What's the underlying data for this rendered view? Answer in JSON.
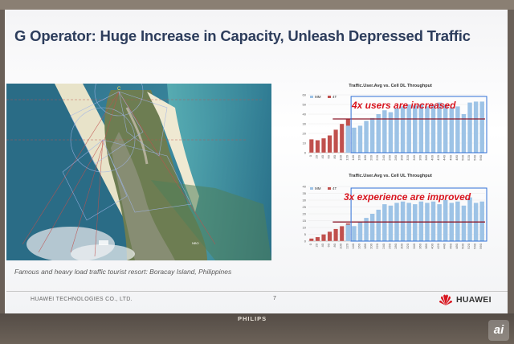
{
  "slide": {
    "title": "G Operator: Huge Increase in Capacity, Unleash Depressed Traffic",
    "caption": "Famous and heavy load traffic tourist resort: Boracay Island, Philippines",
    "company": "HUAWEI TECHNOLOGIES CO., LTD.",
    "page_number": "7",
    "logo_text": "HUAWEI"
  },
  "monitor": {
    "brand": "PHILIPS"
  },
  "map": {
    "point_label": "C",
    "sign_label": "NBO"
  },
  "watermark": {
    "text": "ai"
  },
  "colors": {
    "title": "#2d3d5c",
    "bar_mm": "#9dc3e6",
    "bar_4t": "#c0504d",
    "threshold_line": "#8b1a2b",
    "highlight_box": "#2f6fd6",
    "annotation": "#d8141e"
  },
  "chart_data": [
    {
      "type": "bar",
      "title": "Traffic.User.Avg vs. Cell DL Throughput",
      "annotation": "4x users are increased",
      "legend": [
        "MM",
        "4T"
      ],
      "legend_position": "top-left",
      "ylim": [
        0,
        60
      ],
      "yticks": [
        "0",
        "10",
        "20",
        "30",
        "40",
        "50",
        "60"
      ],
      "categories": [
        "0",
        "20",
        "40",
        "60",
        "80",
        "100",
        "120",
        "140",
        "160",
        "180",
        "200",
        "220",
        "240",
        "260",
        "280",
        "300",
        "320",
        "340",
        "360",
        "380",
        "400",
        "420",
        "440",
        "460",
        "480",
        "500",
        "520",
        "540",
        "560"
      ],
      "series": [
        {
          "name": "4T",
          "values": [
            14,
            13,
            15,
            18,
            24,
            30,
            35,
            null,
            null,
            null,
            null,
            null,
            null,
            null,
            null,
            null,
            null,
            null,
            null,
            null,
            null,
            null,
            null,
            null,
            null,
            null,
            null,
            null,
            null
          ]
        },
        {
          "name": "MM",
          "values": [
            null,
            null,
            null,
            null,
            null,
            null,
            28,
            26,
            28,
            33,
            36,
            40,
            44,
            42,
            46,
            48,
            50,
            49,
            50,
            48,
            50,
            52,
            50,
            47,
            48,
            40,
            52,
            53,
            53
          ]
        }
      ],
      "threshold": 35
    },
    {
      "type": "bar",
      "title": "Traffic.User.Avg vs. Cell UL Throughput",
      "annotation": "3x experience are improved",
      "legend": [
        "MM",
        "4T"
      ],
      "legend_position": "top-left",
      "ylim": [
        0,
        40
      ],
      "yticks": [
        "0",
        "5",
        "10",
        "15",
        "20",
        "25",
        "30",
        "35",
        "40"
      ],
      "categories": [
        "0",
        "20",
        "40",
        "60",
        "80",
        "100",
        "120",
        "140",
        "160",
        "180",
        "200",
        "220",
        "240",
        "260",
        "280",
        "300",
        "320",
        "340",
        "360",
        "380",
        "400",
        "420",
        "440",
        "460",
        "480",
        "500",
        "520",
        "540",
        "560"
      ],
      "series": [
        {
          "name": "4T",
          "values": [
            2,
            3,
            5,
            7,
            9,
            11,
            13,
            null,
            null,
            null,
            null,
            null,
            null,
            null,
            null,
            null,
            null,
            null,
            null,
            null,
            null,
            null,
            null,
            null,
            null,
            null,
            null,
            null,
            null
          ]
        },
        {
          "name": "MM",
          "values": [
            null,
            null,
            null,
            null,
            null,
            null,
            12,
            11,
            14,
            17,
            20,
            23,
            27,
            26,
            28,
            29,
            28,
            27,
            29,
            28,
            29,
            27,
            30,
            28,
            29,
            26,
            32,
            28,
            29
          ]
        }
      ],
      "threshold": 14
    }
  ]
}
